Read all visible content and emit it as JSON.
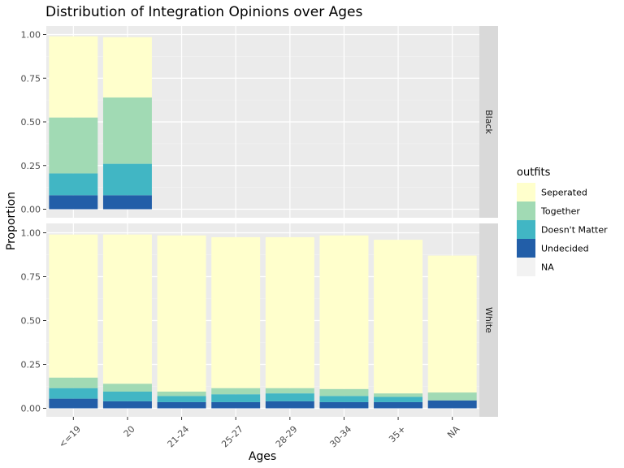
{
  "chart_data": {
    "type": "bar",
    "stacked": true,
    "title": "Distribution of Integration Opinions over Ages",
    "xlabel": "Ages",
    "ylabel": "Proportion",
    "categories": [
      "<=19",
      "20",
      "21-24",
      "25-27",
      "28-29",
      "30-34",
      "35+",
      "NA"
    ],
    "ylim": [
      0,
      1
    ],
    "yticks": [
      "0.00",
      "0.25",
      "0.50",
      "0.75",
      "1.00"
    ],
    "legend": {
      "title": "outfits",
      "position": "right",
      "entries": [
        "Seperated",
        "Together",
        "Doesn't Matter",
        "Undecided",
        "NA"
      ]
    },
    "series_colors": {
      "Undecided": "#225ea8",
      "Doesn't Matter": "#41b6c4",
      "Together": "#a1dab4",
      "Seperated": "#ffffcc",
      "NA": "#f2f2f2"
    },
    "facets": [
      {
        "name": "Black",
        "bars": [
          {
            "category": "<=19",
            "Undecided": 0.08,
            "Doesn't Matter": 0.125,
            "Together": 0.32,
            "Seperated": 0.465
          },
          {
            "category": "20",
            "Undecided": 0.08,
            "Doesn't Matter": 0.18,
            "Together": 0.38,
            "Seperated": 0.345
          }
        ]
      },
      {
        "name": "White",
        "bars": [
          {
            "category": "<=19",
            "Undecided": 0.055,
            "Doesn't Matter": 0.06,
            "Together": 0.06,
            "Seperated": 0.815
          },
          {
            "category": "20",
            "Undecided": 0.04,
            "Doesn't Matter": 0.055,
            "Together": 0.045,
            "Seperated": 0.85
          },
          {
            "category": "21-24",
            "Undecided": 0.035,
            "Doesn't Matter": 0.035,
            "Together": 0.025,
            "Seperated": 0.89
          },
          {
            "category": "25-27",
            "Undecided": 0.035,
            "Doesn't Matter": 0.045,
            "Together": 0.035,
            "Seperated": 0.86
          },
          {
            "category": "28-29",
            "Undecided": 0.04,
            "Doesn't Matter": 0.045,
            "Together": 0.03,
            "Seperated": 0.86
          },
          {
            "category": "30-34",
            "Undecided": 0.035,
            "Doesn't Matter": 0.035,
            "Together": 0.04,
            "Seperated": 0.875
          },
          {
            "category": "35+",
            "Undecided": 0.035,
            "Doesn't Matter": 0.03,
            "Together": 0.02,
            "Seperated": 0.875
          },
          {
            "category": "NA",
            "Undecided": 0.045,
            "Doesn't Matter": 0.0,
            "Together": 0.045,
            "Seperated": 0.78
          }
        ]
      }
    ]
  }
}
